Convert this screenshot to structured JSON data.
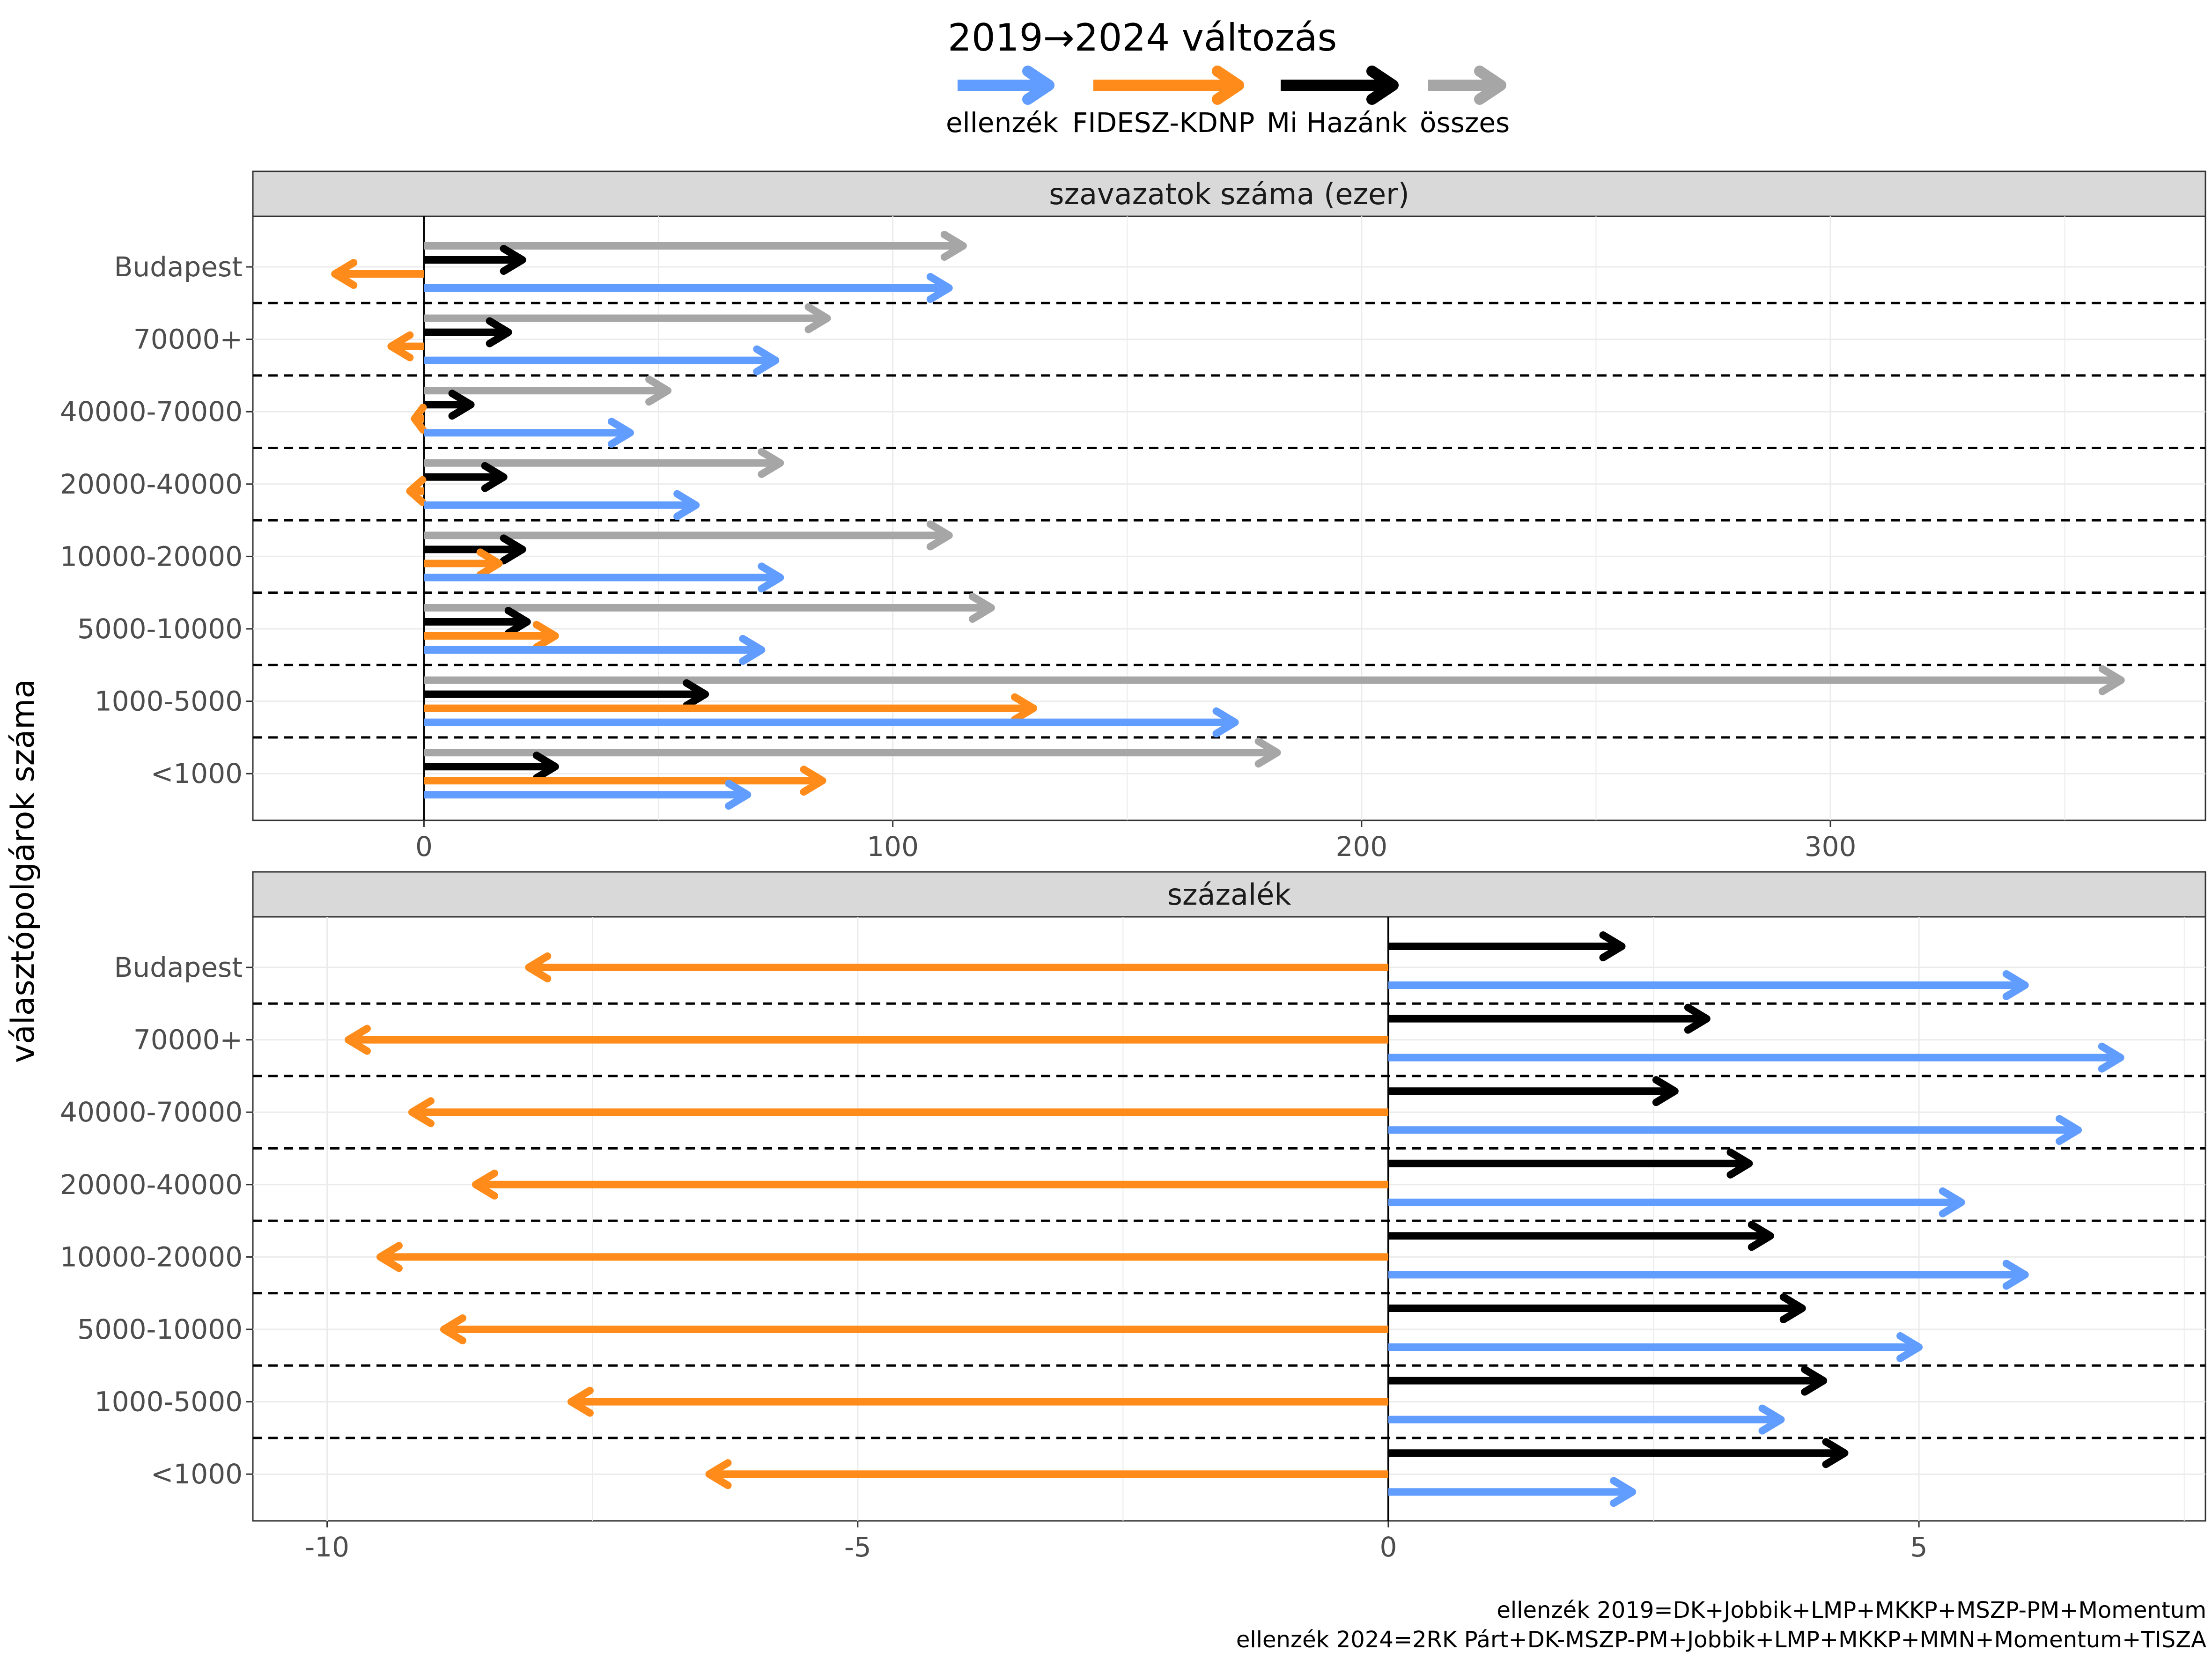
{
  "chart_data": {
    "type": "arrow",
    "legend": {
      "title": "2019→2024 változás",
      "entries": [
        {
          "label": "ellenzék",
          "color": "#619CFF"
        },
        {
          "label": "FIDESZ-KDNP",
          "color": "#FF8C1A"
        },
        {
          "label": "Mi Hazánk",
          "color": "#000000"
        },
        {
          "label": "összes",
          "color": "#A6A6A6"
        }
      ]
    },
    "ylabel": "választópolgárok száma",
    "categories": [
      "Budapest",
      "70000+",
      "40000-70000",
      "20000-40000",
      "10000-20000",
      "5000-10000",
      "1000-5000",
      "<1000"
    ],
    "panels": [
      {
        "strip": "szavazatok száma (ezer)",
        "xlim": [
          -36.5,
          380
        ],
        "xticks": [
          0,
          100,
          200,
          300
        ],
        "xtick_labels": [
          "0",
          "100",
          "200",
          "300"
        ],
        "series": [
          {
            "name": "összes",
            "values": [
              115,
              86,
              52,
              76,
              112,
              121,
              362,
              182
            ]
          },
          {
            "name": "Mi Hazánk",
            "values": [
              21,
              18,
              10,
              17,
              21,
              22,
              60,
              28
            ]
          },
          {
            "name": "FIDESZ-KDNP",
            "values": [
              -19,
              -7,
              -2,
              -3,
              16,
              28,
              130,
              85
            ]
          },
          {
            "name": "ellenzék",
            "values": [
              112,
              75,
              44,
              58,
              76,
              72,
              173,
              69
            ]
          }
        ]
      },
      {
        "strip": "százalék",
        "xlim": [
          -10.7,
          7.7
        ],
        "xticks": [
          -10,
          -5,
          0,
          5
        ],
        "xtick_labels": [
          "-10",
          "-5",
          "0",
          "5"
        ],
        "series": [
          {
            "name": "Mi Hazánk",
            "values": [
              2.2,
              3.0,
              2.7,
              3.4,
              3.6,
              3.9,
              4.1,
              4.3
            ]
          },
          {
            "name": "FIDESZ-KDNP",
            "values": [
              -8.1,
              -9.8,
              -9.2,
              -8.6,
              -9.5,
              -8.9,
              -7.7,
              -6.4
            ]
          },
          {
            "name": "ellenzék",
            "values": [
              6.0,
              6.9,
              6.5,
              5.4,
              6.0,
              5.0,
              3.7,
              2.3
            ]
          }
        ]
      }
    ],
    "caption": [
      "ellenzék 2019=DK+Jobbik+LMP+MKKP+MSZP-PM+Momentum",
      "ellenzék 2024=2RK Párt+DK-MSZP-PM+Jobbik+LMP+MKKP+MMN+Momentum+TISZA"
    ]
  }
}
